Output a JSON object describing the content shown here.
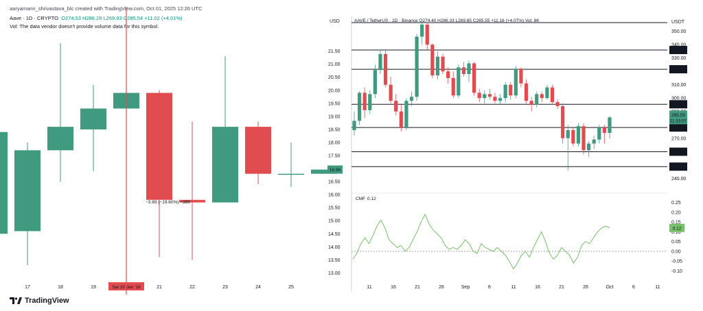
{
  "header": {
    "attribution": "aaryamann_shrivastava_blc created with TradingView.com, Oct 01, 2025 12:26 UTC",
    "left_legend_prefix": "Aave · 1D · CRYPTO",
    "left_ohlc": {
      "o": "O274.53",
      "h": "H286.28",
      "l": "L269.93",
      "c": "C285.54",
      "chg": "+11.02 (+4.01%)"
    },
    "left_vol_note": "Vol: The data vendor doesn't provide volume data for this symbol.",
    "right_legend": "AAVE / TetherUS · 1D · Binance O274.40 H286.33 L269.85 C285.55 +11.16 (+4.07%) Vol: 8K"
  },
  "brand": {
    "name": "TradingView"
  },
  "colors": {
    "up": "#3f9a7f",
    "down": "#e04c50",
    "line": "#77c06a",
    "marker": "#e04c50"
  },
  "chart_data": [
    {
      "type": "candlestick",
      "title": "Aave · 1D · CRYPTO",
      "ylabel": "USD",
      "ylim": [
        12.8,
        22.2
      ],
      "yticks": [
        "21.50",
        "21.00",
        "20.50",
        "20.00",
        "19.50",
        "19.00",
        "18.50",
        "18.00",
        "17.50",
        "17.00",
        "16.50",
        "16.00",
        "15.50",
        "15.00",
        "14.50",
        "14.00",
        "13.50",
        "13.00"
      ],
      "xticks": [
        "17",
        "18",
        "19",
        "Sat 20 Jan '18",
        "21",
        "22",
        "23",
        "24",
        "25"
      ],
      "highlight_x": "Sat 20 Jan '18",
      "last_price_label": "16.96",
      "measure_label": "−3.89 (−19.60%) −389",
      "candles": [
        {
          "x": "16",
          "o": 14.5,
          "h": 18.4,
          "l": 14.5,
          "c": 18.4
        },
        {
          "x": "17",
          "o": 14.6,
          "h": 18.0,
          "l": 13.3,
          "c": 17.7
        },
        {
          "x": "18",
          "o": 17.7,
          "h": 21.8,
          "l": 16.5,
          "c": 18.6
        },
        {
          "x": "19",
          "o": 18.5,
          "h": 20.2,
          "l": 16.9,
          "c": 19.3
        },
        {
          "x": "Sat 20 Jan '18",
          "o": 19.3,
          "h": 21.2,
          "l": 12.8,
          "c": 19.9
        },
        {
          "x": "21",
          "o": 19.9,
          "h": 20.0,
          "l": 13.6,
          "c": 15.8
        },
        {
          "x": "22",
          "o": 15.8,
          "h": 18.8,
          "l": 13.5,
          "c": 15.7
        },
        {
          "x": "23",
          "o": 15.7,
          "h": 21.3,
          "l": 15.7,
          "c": 18.6
        },
        {
          "x": "24",
          "o": 18.6,
          "h": 18.8,
          "l": 16.4,
          "c": 16.8
        },
        {
          "x": "25",
          "o": 16.8,
          "h": 18.0,
          "l": 16.3,
          "c": 16.8
        },
        {
          "x": "26",
          "o": 16.8,
          "h": 16.9,
          "l": 16.8,
          "c": 16.96
        }
      ]
    },
    {
      "type": "candlestick",
      "title": "AAVE / TetherUS · 1D · Binance",
      "ylabel": "USDT",
      "ylim": [
        234,
        357
      ],
      "yticks": [
        "350.00",
        "340.00",
        "330.00",
        "320.00",
        "310.00",
        "300.00",
        "290.00",
        "280.00",
        "270.00",
        "260.00",
        "250.00",
        "240.00"
      ],
      "xticks": [
        "11",
        "16",
        "21",
        "26",
        "Sep",
        "6",
        "11",
        "16",
        "21",
        "26",
        "Oct",
        "6",
        "11"
      ],
      "last_price_label": "285.55",
      "countdown_label": "11:33:57",
      "levels": [
        {
          "value": 356.5,
          "label": ""
        },
        {
          "value": 335.98,
          "label": "335.98"
        },
        {
          "value": 321.59,
          "label": "321.59"
        },
        {
          "value": 295.38,
          "label": "295.38"
        },
        {
          "value": 277.98,
          "label": "277.98"
        },
        {
          "value": 259.89,
          "label": "259.89"
        },
        {
          "value": 248.75,
          "label": "248.75"
        }
      ],
      "candles": [
        {
          "o": 276,
          "h": 290,
          "l": 272,
          "c": 283
        },
        {
          "o": 283,
          "h": 305,
          "l": 280,
          "c": 304
        },
        {
          "o": 304,
          "h": 308,
          "l": 285,
          "c": 291
        },
        {
          "o": 291,
          "h": 306,
          "l": 288,
          "c": 303
        },
        {
          "o": 303,
          "h": 325,
          "l": 300,
          "c": 321
        },
        {
          "o": 321,
          "h": 336,
          "l": 318,
          "c": 333
        },
        {
          "o": 333,
          "h": 336,
          "l": 308,
          "c": 310
        },
        {
          "o": 310,
          "h": 316,
          "l": 296,
          "c": 298
        },
        {
          "o": 298,
          "h": 303,
          "l": 287,
          "c": 290
        },
        {
          "o": 290,
          "h": 295,
          "l": 275,
          "c": 278
        },
        {
          "o": 278,
          "h": 300,
          "l": 276,
          "c": 298
        },
        {
          "o": 298,
          "h": 305,
          "l": 294,
          "c": 301
        },
        {
          "o": 301,
          "h": 348,
          "l": 298,
          "c": 346
        },
        {
          "o": 346,
          "h": 357,
          "l": 340,
          "c": 355
        },
        {
          "o": 355,
          "h": 356,
          "l": 336,
          "c": 340
        },
        {
          "o": 340,
          "h": 341,
          "l": 315,
          "c": 317
        },
        {
          "o": 317,
          "h": 335,
          "l": 314,
          "c": 331
        },
        {
          "o": 331,
          "h": 333,
          "l": 318,
          "c": 320
        },
        {
          "o": 320,
          "h": 323,
          "l": 311,
          "c": 315
        },
        {
          "o": 315,
          "h": 320,
          "l": 300,
          "c": 302
        },
        {
          "o": 302,
          "h": 325,
          "l": 300,
          "c": 323
        },
        {
          "o": 323,
          "h": 327,
          "l": 316,
          "c": 318
        },
        {
          "o": 318,
          "h": 328,
          "l": 312,
          "c": 326
        },
        {
          "o": 326,
          "h": 327,
          "l": 302,
          "c": 304
        },
        {
          "o": 304,
          "h": 307,
          "l": 297,
          "c": 300
        },
        {
          "o": 300,
          "h": 306,
          "l": 296,
          "c": 303
        },
        {
          "o": 303,
          "h": 307,
          "l": 299,
          "c": 301
        },
        {
          "o": 301,
          "h": 304,
          "l": 296,
          "c": 298
        },
        {
          "o": 298,
          "h": 303,
          "l": 295,
          "c": 300
        },
        {
          "o": 300,
          "h": 312,
          "l": 297,
          "c": 310
        },
        {
          "o": 310,
          "h": 312,
          "l": 299,
          "c": 302
        },
        {
          "o": 302,
          "h": 324,
          "l": 300,
          "c": 322
        },
        {
          "o": 322,
          "h": 323,
          "l": 308,
          "c": 311
        },
        {
          "o": 311,
          "h": 314,
          "l": 296,
          "c": 298
        },
        {
          "o": 298,
          "h": 301,
          "l": 290,
          "c": 295
        },
        {
          "o": 295,
          "h": 305,
          "l": 293,
          "c": 303
        },
        {
          "o": 303,
          "h": 305,
          "l": 297,
          "c": 300
        },
        {
          "o": 300,
          "h": 310,
          "l": 299,
          "c": 308
        },
        {
          "o": 308,
          "h": 310,
          "l": 296,
          "c": 297
        },
        {
          "o": 297,
          "h": 299,
          "l": 292,
          "c": 294
        },
        {
          "o": 294,
          "h": 296,
          "l": 266,
          "c": 270
        },
        {
          "o": 270,
          "h": 280,
          "l": 246,
          "c": 276
        },
        {
          "o": 276,
          "h": 278,
          "l": 264,
          "c": 266
        },
        {
          "o": 266,
          "h": 281,
          "l": 264,
          "c": 279
        },
        {
          "o": 279,
          "h": 281,
          "l": 258,
          "c": 261
        },
        {
          "o": 261,
          "h": 268,
          "l": 256,
          "c": 266
        },
        {
          "o": 266,
          "h": 272,
          "l": 262,
          "c": 269
        },
        {
          "o": 269,
          "h": 280,
          "l": 266,
          "c": 278
        },
        {
          "o": 278,
          "h": 280,
          "l": 266,
          "c": 274
        },
        {
          "o": 274,
          "h": 286.33,
          "l": 269.85,
          "c": 285.55
        }
      ]
    },
    {
      "type": "line",
      "title": "CMF",
      "value_label": "0.12",
      "ylim": [
        -0.13,
        0.27
      ],
      "yticks": [
        "0.25",
        "0.20",
        "0.15",
        "0.10",
        "0.05",
        "0.00",
        "-0.05",
        "-0.10"
      ],
      "zero_line": 0,
      "series": [
        {
          "values": [
            -0.04,
            -0.01,
            0.04,
            0.07,
            0.04,
            0.08,
            0.13,
            0.16,
            0.12,
            0.06,
            0.04,
            0.02,
            0.03,
            0.0,
            0.02,
            0.06,
            0.1,
            0.15,
            0.19,
            0.14,
            0.11,
            0.09,
            0.07,
            0.03,
            0.01,
            0.02,
            0.01,
            0.03,
            0.06,
            0.04,
            0.0,
            -0.01,
            0.04,
            0.02,
            0.01,
            0.0,
            0.02,
            0.0,
            -0.02,
            -0.05,
            -0.09,
            -0.06,
            -0.02,
            0.0,
            -0.03,
            0.02,
            0.06,
            0.1,
            0.05,
            -0.01,
            -0.04,
            -0.02,
            0.02,
            0.0,
            -0.02,
            -0.06,
            -0.03,
            0.03,
            0.05,
            0.04,
            0.07,
            0.1,
            0.12,
            0.13,
            0.12
          ]
        }
      ]
    }
  ]
}
